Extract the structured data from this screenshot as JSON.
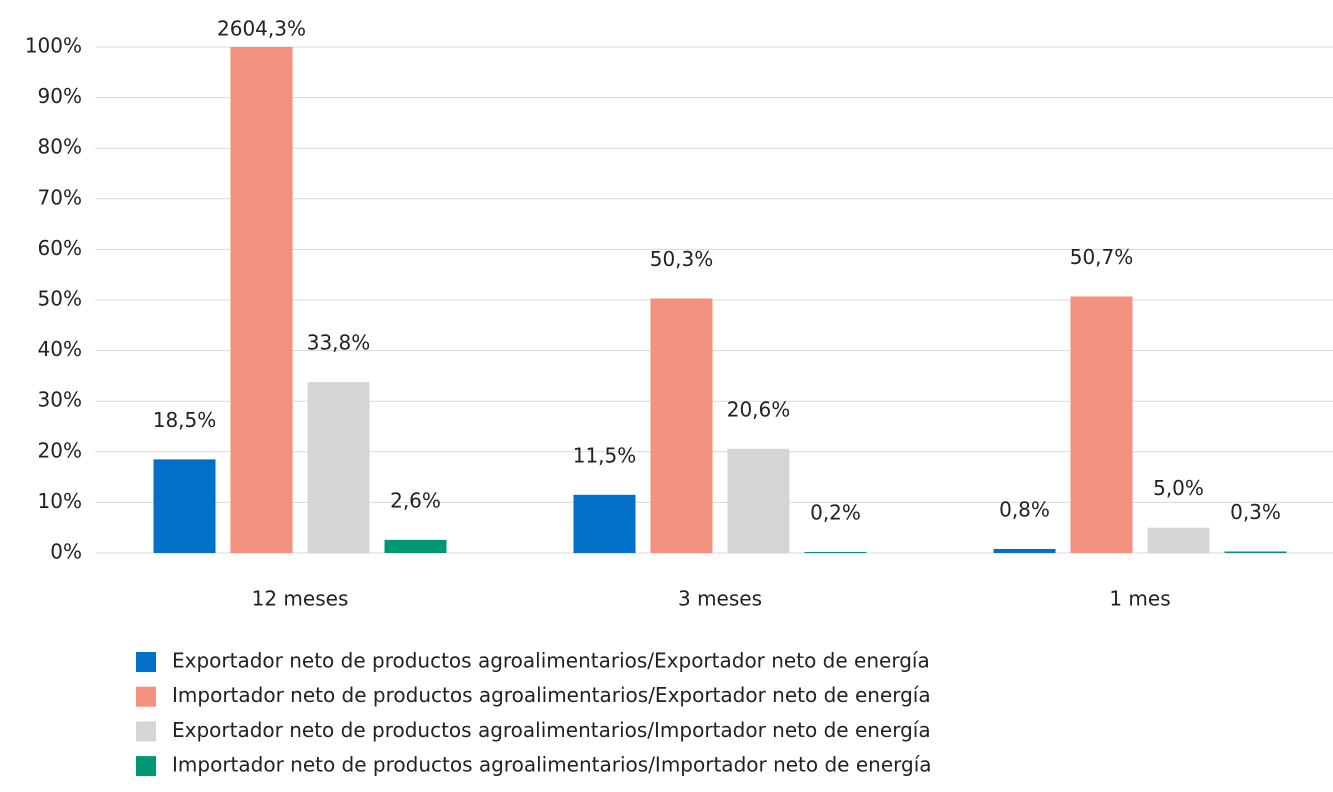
{
  "chart_data": {
    "type": "bar",
    "categories": [
      "12 meses",
      "3 meses",
      "1 mes"
    ],
    "series": [
      {
        "name": "Exportador neto de productos agroalimentarios/Exportador neto de energía",
        "color": "#0070c8",
        "values": [
          18.5,
          11.5,
          0.8
        ],
        "value_labels": [
          "18,5%",
          "11,5%",
          "0,8%"
        ]
      },
      {
        "name": "Importador neto de productos agroalimentarios/Exportador neto de energía",
        "color": "#f4907e",
        "values": [
          2604.3,
          50.3,
          50.7
        ],
        "value_labels": [
          "2604,3%",
          "50,3%",
          "50,7%"
        ]
      },
      {
        "name": "Exportador neto de productos agroalimentarios/Importador neto de energía",
        "color": "#d3d5d6",
        "values": [
          33.8,
          20.6,
          5.0
        ],
        "value_labels": [
          "33,8%",
          "20,6%",
          "5,0%"
        ]
      },
      {
        "name": "Importador neto de productos agroalimentarios/Importador neto de energía",
        "color": "#009874",
        "values": [
          2.6,
          0.2,
          0.3
        ],
        "value_labels": [
          "2,6%",
          "0,2%",
          "0,3%"
        ]
      }
    ],
    "ylim": [
      0,
      100
    ],
    "yticks": [
      {
        "value": 0,
        "label": "0%"
      },
      {
        "value": 10,
        "label": "10%"
      },
      {
        "value": 20,
        "label": "20%"
      },
      {
        "value": 30,
        "label": "30%"
      },
      {
        "value": 40,
        "label": "40%"
      },
      {
        "value": 50,
        "label": "50%"
      },
      {
        "value": 60,
        "label": "60%"
      },
      {
        "value": 70,
        "label": "70%"
      },
      {
        "value": 80,
        "label": "80%"
      },
      {
        "value": 90,
        "label": "90%"
      },
      {
        "value": 100,
        "label": "100%"
      }
    ],
    "grid": true
  }
}
